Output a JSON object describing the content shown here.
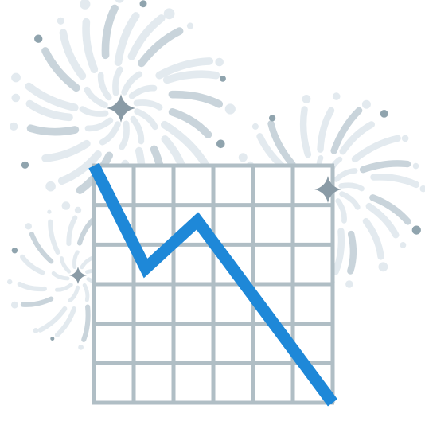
{
  "illustration": {
    "subject": "declining-line-chart-with-fireworks",
    "icons": [
      "fireworks-burst-icon",
      "sparkle-icon",
      "line-chart-icon"
    ],
    "colors": {
      "background": "#ffffff",
      "grid": "#b0bec5",
      "trend_line": "#1e88d8",
      "burst_light": "#e3eaef",
      "burst_mid": "#c9d4db",
      "burst_dark": "#90a4ae",
      "sparkle": "#8a9ba6"
    }
  },
  "chart_data": {
    "type": "line",
    "trend": "down",
    "x": [
      0,
      1.3,
      2.6,
      6
    ],
    "values": [
      6,
      3.4,
      4.6,
      0
    ],
    "xlim": [
      0,
      6
    ],
    "ylim": [
      0,
      6
    ],
    "grid": true,
    "legend": "none"
  }
}
